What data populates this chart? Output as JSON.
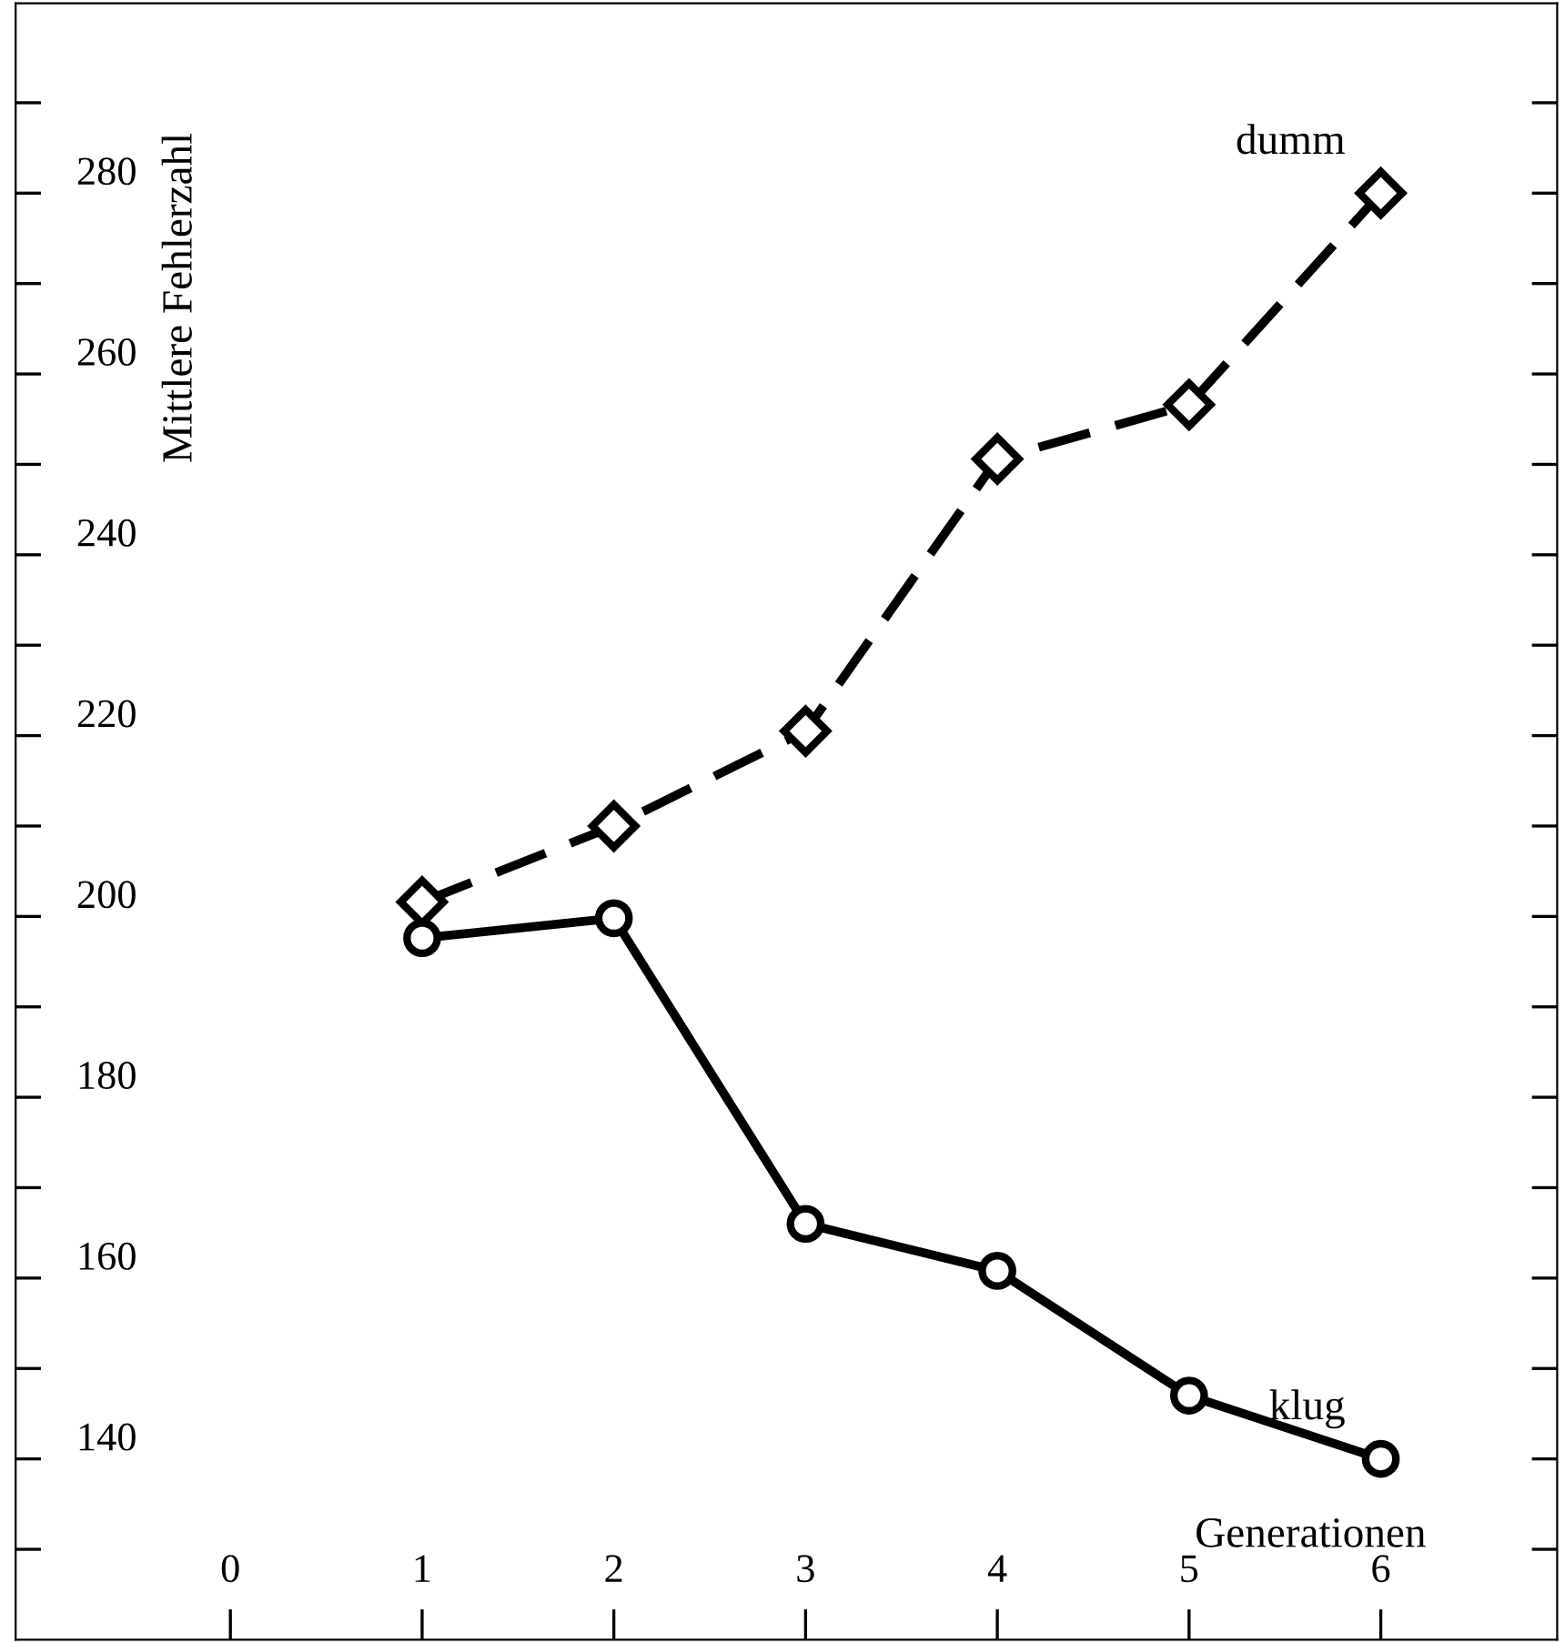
{
  "chart_data": {
    "type": "line",
    "xlabel": "Generationen",
    "ylabel": "Mittlere Fehlerzahl",
    "xlim": [
      -1.12,
      6.92
    ],
    "ylim": [
      120,
      301
    ],
    "xticks": [
      0,
      1,
      2,
      3,
      4,
      5,
      6
    ],
    "yticks": [
      {
        "value": 130,
        "label": null
      },
      140,
      {
        "value": 150,
        "label": null
      },
      160,
      {
        "value": 170,
        "label": null
      },
      180,
      {
        "value": 190,
        "label": null
      },
      200,
      {
        "value": 210,
        "label": null
      },
      220,
      {
        "value": 230,
        "label": null
      },
      240,
      {
        "value": 250,
        "label": null
      },
      260,
      {
        "value": 270,
        "label": null
      },
      280,
      {
        "value": 290,
        "label": null
      }
    ],
    "grid": false,
    "legend": false,
    "series": [
      {
        "name": "dumm",
        "color": "#000000",
        "marker": "diamond",
        "line_style": "dashed",
        "x": [
          1,
          2,
          3,
          4,
          5,
          6
        ],
        "values": [
          201.6,
          210,
          220.5,
          250.6,
          256.6,
          280
        ]
      },
      {
        "name": "klug",
        "color": "#000000",
        "marker": "circle",
        "line_style": "solid",
        "x": [
          1,
          2,
          3,
          4,
          5,
          6
        ],
        "values": [
          197.6,
          199.8,
          166,
          160.8,
          147,
          140
        ]
      }
    ]
  }
}
